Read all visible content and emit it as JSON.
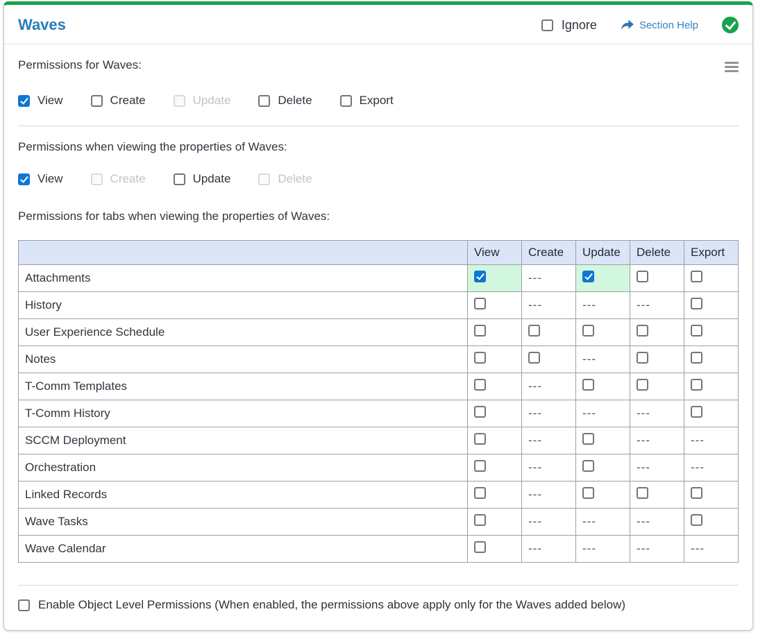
{
  "header": {
    "title": "Waves",
    "ignore_label": "Ignore",
    "section_help_label": "Section Help"
  },
  "icons": {
    "section_help": "forward-arrow-icon",
    "status": "check-circle-icon",
    "menu": "hamburger-menu-icon"
  },
  "colors": {
    "accent_green": "#17a24b",
    "title_blue": "#2b7cb9",
    "link_blue": "#3584c4",
    "checkbox_blue": "#0f76d3",
    "table_header_bg": "#dbe5f7",
    "checked_cell_bg": "#d2f7df"
  },
  "sections": {
    "main_permissions": {
      "label": "Permissions for Waves:",
      "checkboxes": [
        {
          "label": "View",
          "checked": true,
          "disabled": false
        },
        {
          "label": "Create",
          "checked": false,
          "disabled": false
        },
        {
          "label": "Update",
          "checked": false,
          "disabled": true
        },
        {
          "label": "Delete",
          "checked": false,
          "disabled": false
        },
        {
          "label": "Export",
          "checked": false,
          "disabled": false
        }
      ]
    },
    "properties_permissions": {
      "label": "Permissions when viewing the properties of Waves:",
      "checkboxes": [
        {
          "label": "View",
          "checked": true,
          "disabled": false
        },
        {
          "label": "Create",
          "checked": false,
          "disabled": true
        },
        {
          "label": "Update",
          "checked": false,
          "disabled": false
        },
        {
          "label": "Delete",
          "checked": false,
          "disabled": true
        }
      ]
    },
    "tabs_permissions": {
      "label": "Permissions for tabs when viewing the properties of Waves:",
      "table": {
        "na_text": "---",
        "columns": [
          "View",
          "Create",
          "Update",
          "Delete",
          "Export"
        ],
        "rows": [
          {
            "name": "Attachments",
            "cells": [
              "checked",
              "na",
              "checked",
              "unchecked",
              "unchecked"
            ]
          },
          {
            "name": "History",
            "cells": [
              "unchecked",
              "na",
              "na",
              "na",
              "unchecked"
            ]
          },
          {
            "name": "User Experience Schedule",
            "cells": [
              "unchecked",
              "unchecked",
              "unchecked",
              "unchecked",
              "unchecked"
            ]
          },
          {
            "name": "Notes",
            "cells": [
              "unchecked",
              "unchecked",
              "na",
              "unchecked",
              "unchecked"
            ]
          },
          {
            "name": "T-Comm Templates",
            "cells": [
              "unchecked",
              "na",
              "unchecked",
              "unchecked",
              "unchecked"
            ]
          },
          {
            "name": "T-Comm History",
            "cells": [
              "unchecked",
              "na",
              "na",
              "na",
              "unchecked"
            ]
          },
          {
            "name": "SCCM Deployment",
            "cells": [
              "unchecked",
              "na",
              "unchecked",
              "na",
              "na"
            ]
          },
          {
            "name": "Orchestration",
            "cells": [
              "unchecked",
              "na",
              "unchecked",
              "na",
              "na"
            ]
          },
          {
            "name": "Linked Records",
            "cells": [
              "unchecked",
              "na",
              "unchecked",
              "unchecked",
              "unchecked"
            ]
          },
          {
            "name": "Wave Tasks",
            "cells": [
              "unchecked",
              "na",
              "na",
              "na",
              "unchecked"
            ]
          },
          {
            "name": "Wave Calendar",
            "cells": [
              "unchecked",
              "na",
              "na",
              "na",
              "na"
            ]
          }
        ]
      }
    }
  },
  "footer": {
    "enable_olp_label": "Enable Object Level Permissions (When enabled, the permissions above apply only for the Waves added below)",
    "enable_olp_checked": false
  }
}
